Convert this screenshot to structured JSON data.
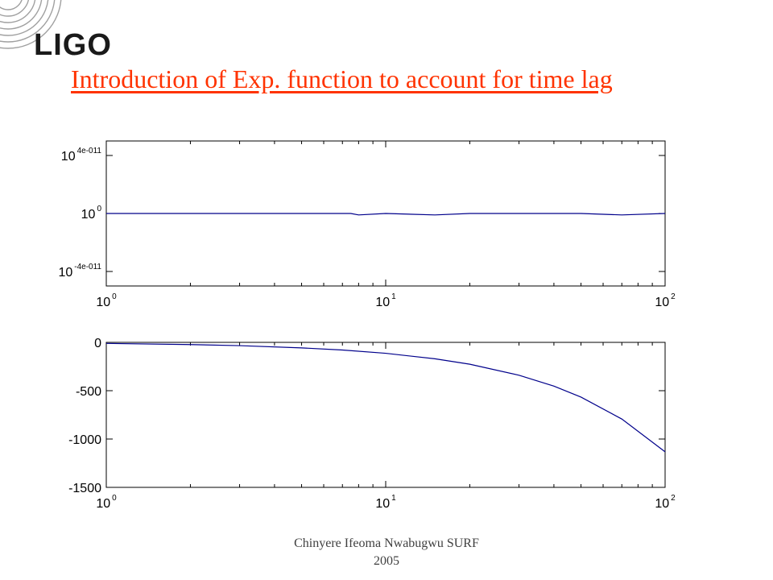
{
  "logo": {
    "text": "LIGO"
  },
  "title": "Introduction  of Exp. function to account for time lag",
  "footer": {
    "line1": "Chinyere Ifeoma Nwabugwu SURF",
    "line2": "2005"
  },
  "colors": {
    "title": "#ff3300",
    "series": "#00008b",
    "axis": "#000000"
  },
  "chart_data": [
    {
      "type": "line",
      "xscale": "log",
      "yscale": "log",
      "xlim": [
        1,
        100
      ],
      "xticks": [
        {
          "base": "10",
          "exp": "0",
          "value": 1
        },
        {
          "base": "10",
          "exp": "1",
          "value": 10
        },
        {
          "base": "10",
          "exp": "2",
          "value": 100
        }
      ],
      "yticks": [
        {
          "base": "10",
          "exp": "4e-011",
          "value": 4e-11
        },
        {
          "base": "10",
          "exp": "0",
          "value": 0
        },
        {
          "base": "10",
          "exp": "-4e-011",
          "value": -4e-11
        }
      ],
      "ylim_log10": [
        -5e-11,
        5e-11
      ],
      "series": [
        {
          "x": [
            1,
            2,
            5,
            7.5,
            8,
            10,
            15,
            20,
            30,
            50,
            70,
            100
          ],
          "y_log10": [
            0,
            0,
            0,
            0,
            -1e-12,
            0,
            -1e-12,
            0,
            0,
            0,
            -1e-12,
            0
          ]
        }
      ]
    },
    {
      "type": "line",
      "xscale": "log",
      "yscale": "linear",
      "xlim": [
        1,
        100
      ],
      "ylim": [
        -1500,
        0
      ],
      "xticks": [
        {
          "base": "10",
          "exp": "0",
          "value": 1
        },
        {
          "base": "10",
          "exp": "1",
          "value": 10
        },
        {
          "base": "10",
          "exp": "2",
          "value": 100
        }
      ],
      "yticks": [
        {
          "label": "0",
          "value": 0
        },
        {
          "label": "-500",
          "value": -500
        },
        {
          "label": "-1000",
          "value": -1000
        },
        {
          "label": "-1500",
          "value": -1500
        }
      ],
      "series": [
        {
          "x": [
            1,
            2,
            3,
            5,
            7,
            10,
            15,
            20,
            30,
            40,
            50,
            70,
            100
          ],
          "y": [
            -11,
            -23,
            -34,
            -57,
            -79,
            -113,
            -170,
            -226,
            -340,
            -453,
            -566,
            -793,
            -1132
          ]
        }
      ]
    }
  ]
}
